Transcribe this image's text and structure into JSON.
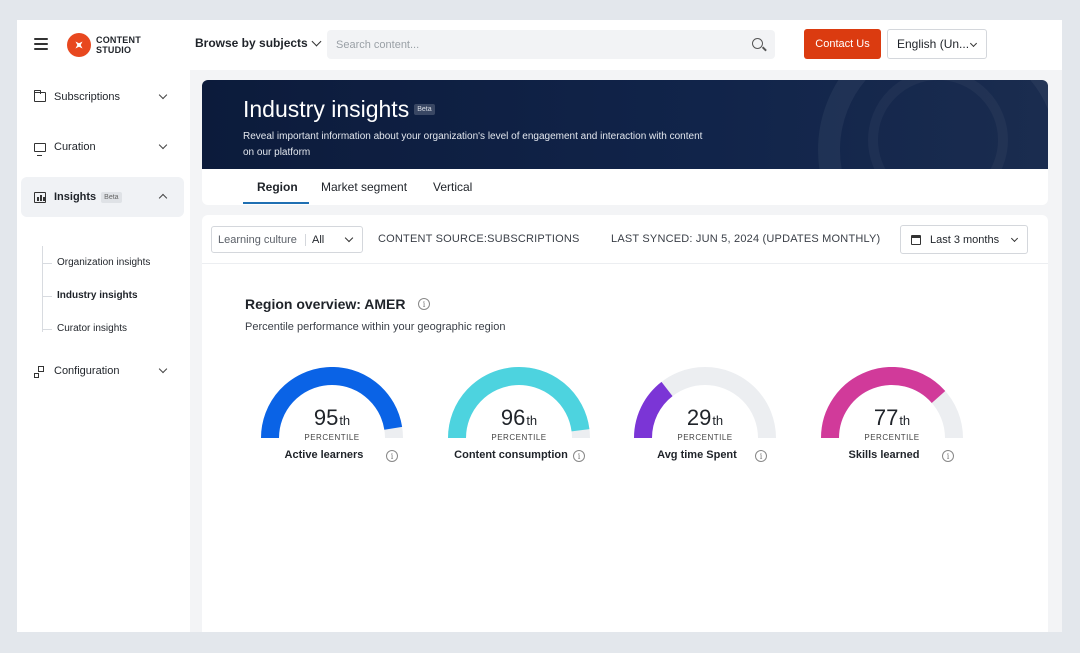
{
  "topbar": {
    "logo_line1": "CONTENT",
    "logo_line2": "STUDIO",
    "browse_label": "Browse by subjects",
    "search_placeholder": "Search content...",
    "contact_label": "Contact Us",
    "language_label": "English (Un..."
  },
  "sidebar": {
    "items": [
      {
        "label": "Subscriptions",
        "icon": "folder-icon"
      },
      {
        "label": "Curation",
        "icon": "monitor-icon"
      },
      {
        "label": "Insights",
        "icon": "chart-icon",
        "badge": "Beta"
      },
      {
        "label": "Configuration",
        "icon": "org-chart-icon"
      }
    ],
    "sub_items": [
      {
        "label": "Organization insights"
      },
      {
        "label": "Industry insights"
      },
      {
        "label": "Curator insights"
      }
    ]
  },
  "hero": {
    "title": "Industry insights",
    "badge": "Beta",
    "description": "Reveal important information about your organization's level of engagement and interaction with content on our platform"
  },
  "tabs": [
    {
      "label": "Region"
    },
    {
      "label": "Market segment"
    },
    {
      "label": "Vertical"
    }
  ],
  "filters": {
    "culture_label": "Learning culture",
    "culture_value": "All",
    "content_source": "CONTENT SOURCE:SUBSCRIPTIONS",
    "last_synced": "LAST SYNCED: JUN 5, 2024 (UPDATES MONTHLY)",
    "date_range": "Last 3 months"
  },
  "overview": {
    "title": "Region overview: AMER",
    "subtitle": "Percentile performance within your geographic region"
  },
  "gauges": [
    {
      "value": "95",
      "suffix": "th",
      "unit": "PERCENTILE",
      "label": "Active learners",
      "percent": 95,
      "color": "#0a63e6"
    },
    {
      "value": "96",
      "suffix": "th",
      "unit": "PERCENTILE",
      "label": "Content consumption",
      "percent": 96,
      "color": "#4dd3df"
    },
    {
      "value": "29",
      "suffix": "th",
      "unit": "PERCENTILE",
      "label": "Avg time Spent",
      "percent": 29,
      "color": "#7b35d6"
    },
    {
      "value": "77",
      "suffix": "th",
      "unit": "PERCENTILE",
      "label": "Skills learned",
      "percent": 77,
      "color": "#d13a9a"
    }
  ],
  "colors": {
    "accent": "#db3b10",
    "hero_bg": "#0c1b3b",
    "tab_underline": "#1f6fb2",
    "gauge_track": "#eceef1"
  }
}
